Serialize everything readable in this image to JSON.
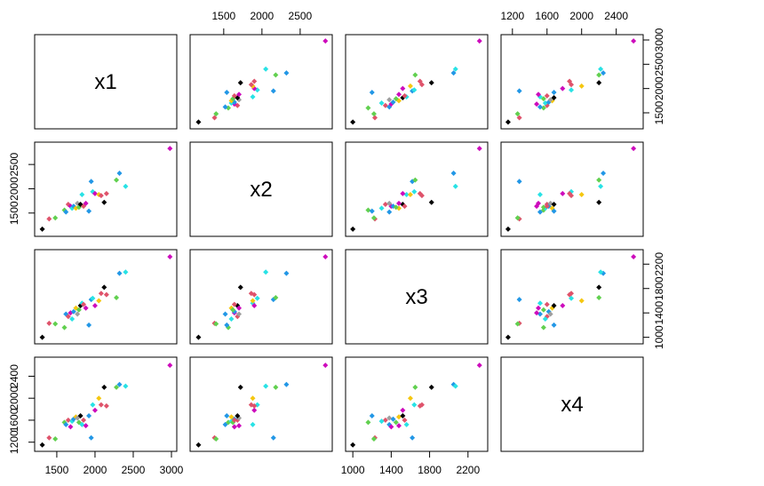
{
  "chart_data": {
    "type": "scatter-matrix",
    "variables": [
      "x1",
      "x2",
      "x3",
      "x4"
    ],
    "ranges": {
      "x1": [
        1280,
        3000
      ],
      "x2": [
        1130,
        2850
      ],
      "x3": [
        980,
        2350
      ],
      "x4": [
        1130,
        2650
      ]
    },
    "ticks": {
      "x1": [
        1500,
        2000,
        2500,
        3000
      ],
      "x2": [
        1500,
        2000,
        2500
      ],
      "x3": [
        1000,
        1400,
        1800,
        2200
      ],
      "x4": [
        1200,
        1600,
        2000,
        2400
      ]
    },
    "tick_labels": {
      "x1": [
        "1500",
        "2000",
        "2500",
        "3000"
      ],
      "x2": [
        "1500",
        "2000",
        "2500"
      ],
      "x3": [
        "1000",
        "1400",
        "1800",
        "2200"
      ],
      "x4": [
        "1200",
        "1600",
        "2000",
        "2400"
      ]
    },
    "palette": [
      "#000000",
      "#DF536B",
      "#61D04F",
      "#2297E6",
      "#28E2E5",
      "#CD0BBC",
      "#F5C710",
      "#9E9E9E"
    ],
    "points": [
      {
        "x1": 1310,
        "x2": 1170,
        "x3": 1000,
        "x4": 1150,
        "c": 0
      },
      {
        "x1": 1400,
        "x2": 1380,
        "x3": 1230,
        "x4": 1280,
        "c": 1
      },
      {
        "x1": 1480,
        "x2": 1400,
        "x3": 1220,
        "x4": 1260,
        "c": 2
      },
      {
        "x1": 1600,
        "x2": 1560,
        "x3": 1160,
        "x4": 1560,
        "c": 2
      },
      {
        "x1": 1620,
        "x2": 1520,
        "x3": 1380,
        "x4": 1520,
        "c": 3
      },
      {
        "x1": 1650,
        "x2": 1680,
        "x3": 1340,
        "x4": 1600,
        "c": 1
      },
      {
        "x1": 1680,
        "x2": 1640,
        "x3": 1400,
        "x4": 1480,
        "c": 5
      },
      {
        "x1": 1700,
        "x2": 1600,
        "x3": 1300,
        "x4": 1580,
        "c": 4
      },
      {
        "x1": 1720,
        "x2": 1640,
        "x3": 1420,
        "x4": 1620,
        "c": 3
      },
      {
        "x1": 1750,
        "x2": 1600,
        "x3": 1480,
        "x4": 1660,
        "c": 6
      },
      {
        "x1": 1770,
        "x2": 1700,
        "x3": 1380,
        "x4": 1640,
        "c": 7
      },
      {
        "x1": 1790,
        "x2": 1620,
        "x3": 1450,
        "x4": 1560,
        "c": 2
      },
      {
        "x1": 1810,
        "x2": 1680,
        "x3": 1520,
        "x4": 1680,
        "c": 0
      },
      {
        "x1": 1830,
        "x2": 1880,
        "x3": 1560,
        "x4": 1520,
        "c": 4
      },
      {
        "x1": 1850,
        "x2": 1640,
        "x3": 1540,
        "x4": 1600,
        "c": 1
      },
      {
        "x1": 1880,
        "x2": 1700,
        "x3": 1480,
        "x4": 1500,
        "c": 5
      },
      {
        "x1": 1920,
        "x2": 1540,
        "x3": 1200,
        "x4": 1680,
        "c": 3
      },
      {
        "x1": 1950,
        "x2": 2150,
        "x3": 1620,
        "x4": 1280,
        "c": 3
      },
      {
        "x1": 1970,
        "x2": 1940,
        "x3": 1640,
        "x4": 1880,
        "c": 4
      },
      {
        "x1": 2000,
        "x2": 1900,
        "x3": 1520,
        "x4": 1780,
        "c": 5
      },
      {
        "x1": 2050,
        "x2": 1880,
        "x3": 1600,
        "x4": 2000,
        "c": 6
      },
      {
        "x1": 2080,
        "x2": 1860,
        "x3": 1720,
        "x4": 1880,
        "c": 1
      },
      {
        "x1": 2120,
        "x2": 1720,
        "x3": 1820,
        "x4": 2200,
        "c": 0
      },
      {
        "x1": 2150,
        "x2": 1900,
        "x3": 1700,
        "x4": 1860,
        "c": 1
      },
      {
        "x1": 2280,
        "x2": 2180,
        "x3": 1650,
        "x4": 2200,
        "c": 2
      },
      {
        "x1": 2320,
        "x2": 2320,
        "x3": 2050,
        "x4": 2250,
        "c": 3
      },
      {
        "x1": 2400,
        "x2": 2050,
        "x3": 2070,
        "x4": 2220,
        "c": 4
      },
      {
        "x1": 2980,
        "x2": 2830,
        "x3": 2320,
        "x4": 2600,
        "c": 5
      }
    ]
  }
}
